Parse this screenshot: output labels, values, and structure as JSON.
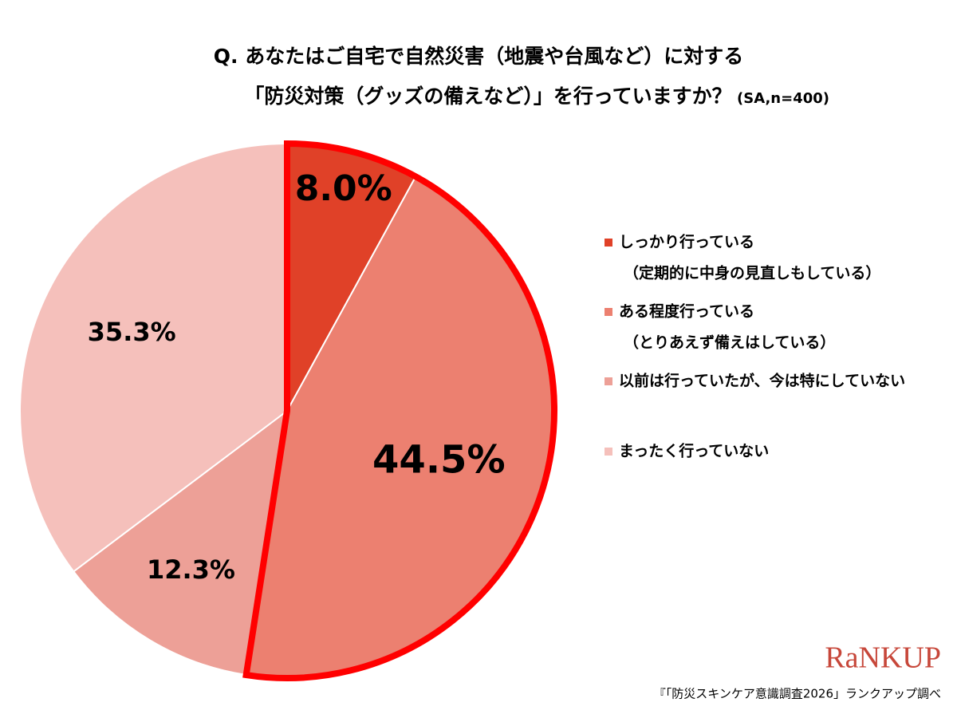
{
  "chart_data": {
    "type": "pie",
    "title": [
      "Q. あなたはご自宅で自然災害（地震や台風など）に対する",
      "「防災対策（グッズの備えなど）」を行っていますか？"
    ],
    "subtitle": "(SA,n=400)",
    "categories": [
      [
        "しっかり行っている",
        "（定期的に中身の見直しもしている）"
      ],
      [
        "ある程度行っている",
        "（とりあえず備えはしている）"
      ],
      [
        "以前は行っていたが、今は特にしていない"
      ],
      [
        "まったく行っていない"
      ]
    ],
    "values": [
      8.0,
      44.5,
      12.3,
      35.3
    ],
    "value_labels": [
      "8.0%",
      "44.5%",
      "12.3%",
      "35.3%"
    ],
    "colors": [
      "#e04128",
      "#ec8070",
      "#eda097",
      "#f5c0bb"
    ],
    "highlight": [
      0,
      1
    ],
    "highlight_color": "#ff0000",
    "logo": "RaNKUP",
    "source": "『「防災スキンケア意識調査2026」ランクアップ調べ"
  }
}
